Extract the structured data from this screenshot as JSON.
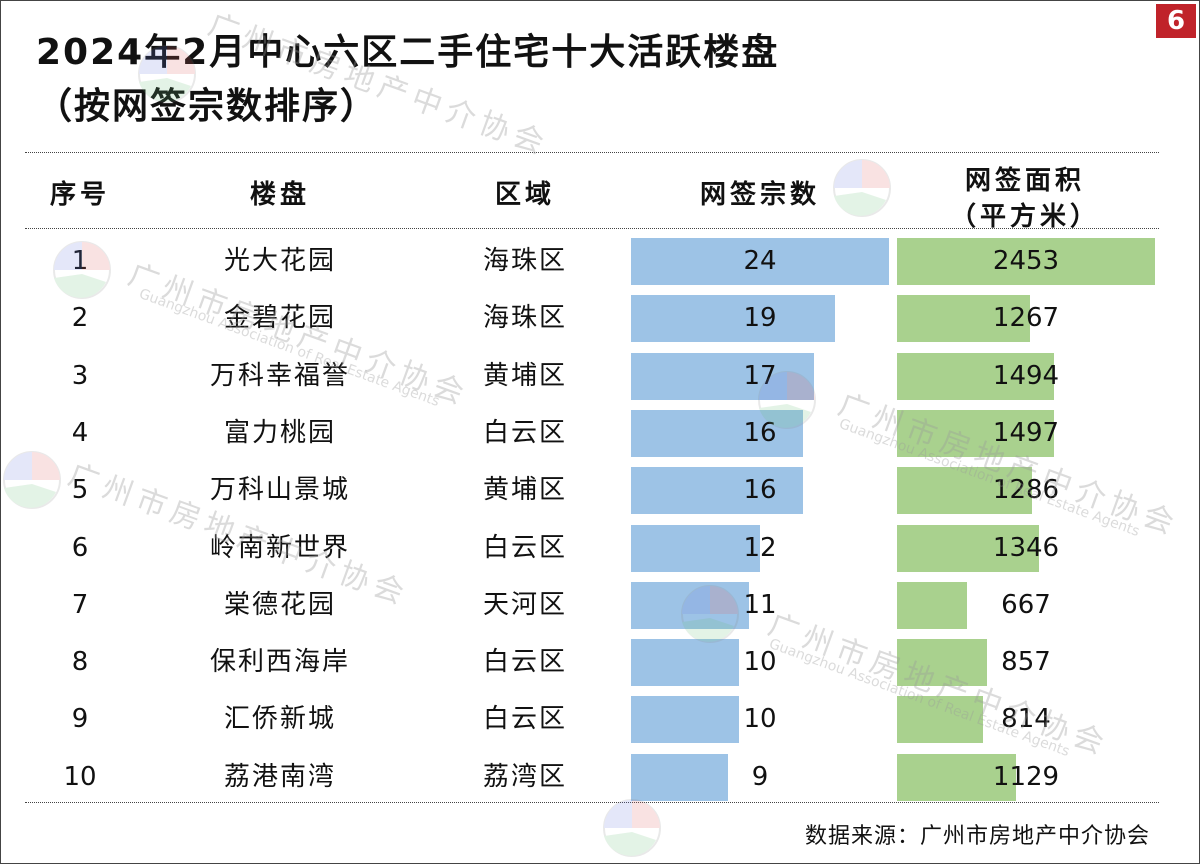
{
  "page_number": "6",
  "title": "2024年2月中心六区二手住宅十大活跃楼盘",
  "subtitle": "（按网签宗数排序）",
  "headers": {
    "rank": "序号",
    "estate": "楼盘",
    "district": "区域",
    "count": "网签宗数",
    "area_line1": "网签面积",
    "area_line2": "（平方米）"
  },
  "source": "数据来源：广州市房地产中介协会",
  "watermark": {
    "cn": "广州市房地产中介协会",
    "en": "Guangzhou Association of Real Estate Agents"
  },
  "colors": {
    "count_bar": "#9dc3e6",
    "area_bar": "#a9d18e",
    "badge": "#c0232a"
  },
  "chart_data": {
    "type": "table",
    "columns": [
      "序号",
      "楼盘",
      "区域",
      "网签宗数",
      "网签面积（平方米）"
    ],
    "rows": [
      {
        "rank": "1",
        "estate": "光大花园",
        "district": "海珠区",
        "count": 24,
        "area": 2453
      },
      {
        "rank": "2",
        "estate": "金碧花园",
        "district": "海珠区",
        "count": 19,
        "area": 1267
      },
      {
        "rank": "3",
        "estate": "万科幸福誉",
        "district": "黄埔区",
        "count": 17,
        "area": 1494
      },
      {
        "rank": "4",
        "estate": "富力桃园",
        "district": "白云区",
        "count": 16,
        "area": 1497
      },
      {
        "rank": "5",
        "estate": "万科山景城",
        "district": "黄埔区",
        "count": 16,
        "area": 1286
      },
      {
        "rank": "6",
        "estate": "岭南新世界",
        "district": "白云区",
        "count": 12,
        "area": 1346
      },
      {
        "rank": "7",
        "estate": "棠德花园",
        "district": "天河区",
        "count": 11,
        "area": 667
      },
      {
        "rank": "8",
        "estate": "保利西海岸",
        "district": "白云区",
        "count": 10,
        "area": 857
      },
      {
        "rank": "9",
        "estate": "汇侨新城",
        "district": "白云区",
        "count": 10,
        "area": 814
      },
      {
        "rank": "10",
        "estate": "荔港南湾",
        "district": "荔湾区",
        "count": 9,
        "area": 1129
      }
    ]
  }
}
